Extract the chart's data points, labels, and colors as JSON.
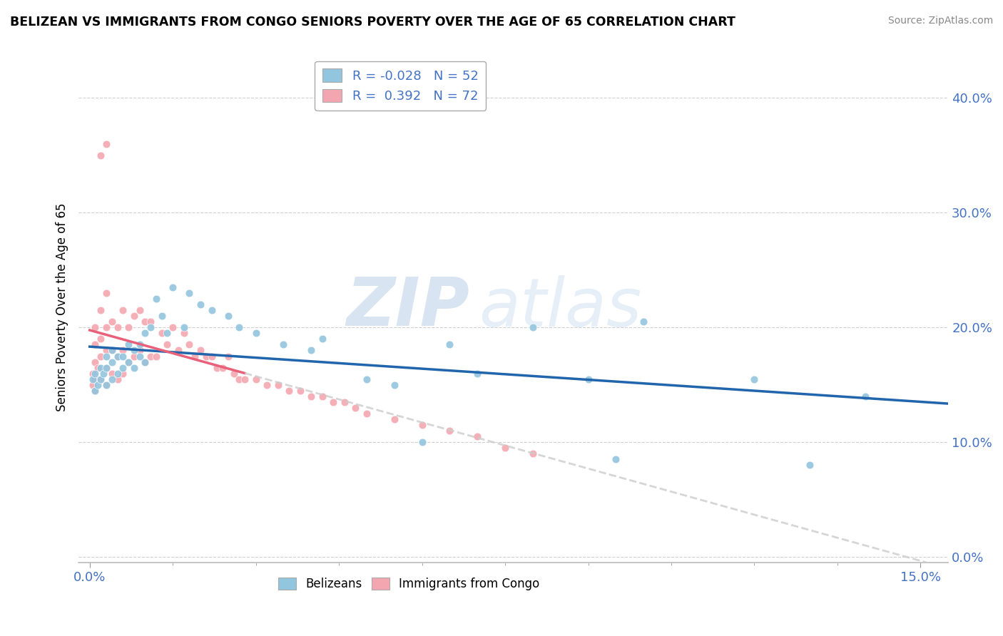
{
  "title": "BELIZEAN VS IMMIGRANTS FROM CONGO SENIORS POVERTY OVER THE AGE OF 65 CORRELATION CHART",
  "source": "Source: ZipAtlas.com",
  "ylabel": "Seniors Poverty Over the Age of 65",
  "xlim": [
    -0.002,
    0.155
  ],
  "ylim": [
    -0.005,
    0.44
  ],
  "yticks": [
    0.0,
    0.1,
    0.2,
    0.3,
    0.4
  ],
  "xticks": [
    0.0,
    0.15
  ],
  "color_belizean": "#92c5de",
  "color_congo": "#f4a6b0",
  "trendline_belizean": "#2166ac",
  "trendline_congo": "#e8607a",
  "legend_r_belizean": "-0.028",
  "legend_n_belizean": "52",
  "legend_r_congo": "0.392",
  "legend_n_congo": "72",
  "watermark_zip": "ZIP",
  "watermark_atlas": "atlas",
  "belizean_x": [
    0.0005,
    0.001,
    0.001,
    0.0015,
    0.002,
    0.002,
    0.0025,
    0.003,
    0.003,
    0.003,
    0.004,
    0.004,
    0.004,
    0.005,
    0.005,
    0.006,
    0.006,
    0.007,
    0.007,
    0.008,
    0.008,
    0.009,
    0.009,
    0.01,
    0.01,
    0.011,
    0.012,
    0.013,
    0.014,
    0.015,
    0.017,
    0.018,
    0.02,
    0.022,
    0.025,
    0.027,
    0.03,
    0.035,
    0.04,
    0.042,
    0.05,
    0.055,
    0.06,
    0.065,
    0.07,
    0.08,
    0.09,
    0.095,
    0.1,
    0.12,
    0.13,
    0.14
  ],
  "belizean_y": [
    0.155,
    0.145,
    0.16,
    0.15,
    0.155,
    0.165,
    0.16,
    0.15,
    0.165,
    0.175,
    0.155,
    0.17,
    0.18,
    0.16,
    0.175,
    0.165,
    0.175,
    0.17,
    0.185,
    0.165,
    0.18,
    0.175,
    0.185,
    0.17,
    0.195,
    0.2,
    0.225,
    0.21,
    0.195,
    0.235,
    0.2,
    0.23,
    0.22,
    0.215,
    0.21,
    0.2,
    0.195,
    0.185,
    0.18,
    0.19,
    0.155,
    0.15,
    0.1,
    0.185,
    0.16,
    0.2,
    0.155,
    0.085,
    0.205,
    0.155,
    0.08,
    0.14
  ],
  "congo_x": [
    0.0005,
    0.0005,
    0.001,
    0.001,
    0.001,
    0.001,
    0.001,
    0.0015,
    0.002,
    0.002,
    0.002,
    0.002,
    0.003,
    0.003,
    0.003,
    0.003,
    0.003,
    0.004,
    0.004,
    0.004,
    0.005,
    0.005,
    0.005,
    0.006,
    0.006,
    0.006,
    0.007,
    0.007,
    0.008,
    0.008,
    0.009,
    0.009,
    0.01,
    0.01,
    0.011,
    0.011,
    0.012,
    0.013,
    0.014,
    0.015,
    0.016,
    0.017,
    0.018,
    0.019,
    0.02,
    0.021,
    0.022,
    0.023,
    0.024,
    0.025,
    0.026,
    0.027,
    0.028,
    0.03,
    0.032,
    0.034,
    0.036,
    0.038,
    0.04,
    0.042,
    0.044,
    0.046,
    0.048,
    0.05,
    0.055,
    0.06,
    0.065,
    0.07,
    0.075,
    0.08,
    0.002,
    0.003
  ],
  "congo_y": [
    0.15,
    0.16,
    0.145,
    0.155,
    0.17,
    0.185,
    0.2,
    0.165,
    0.155,
    0.175,
    0.19,
    0.215,
    0.15,
    0.165,
    0.18,
    0.2,
    0.23,
    0.16,
    0.18,
    0.205,
    0.155,
    0.175,
    0.2,
    0.16,
    0.18,
    0.215,
    0.17,
    0.2,
    0.175,
    0.21,
    0.18,
    0.215,
    0.17,
    0.205,
    0.175,
    0.205,
    0.175,
    0.195,
    0.185,
    0.2,
    0.18,
    0.195,
    0.185,
    0.175,
    0.18,
    0.175,
    0.175,
    0.165,
    0.165,
    0.175,
    0.16,
    0.155,
    0.155,
    0.155,
    0.15,
    0.15,
    0.145,
    0.145,
    0.14,
    0.14,
    0.135,
    0.135,
    0.13,
    0.125,
    0.12,
    0.115,
    0.11,
    0.105,
    0.095,
    0.09,
    0.35,
    0.36
  ]
}
